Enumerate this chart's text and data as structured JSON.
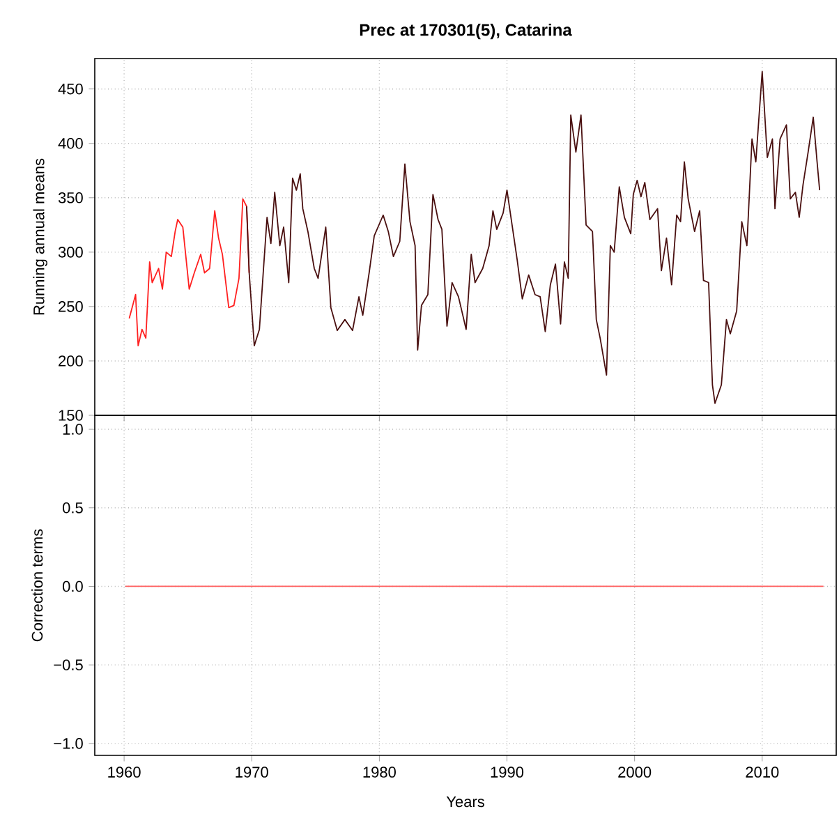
{
  "chart_data": [
    {
      "type": "line",
      "title": "Prec at 170301(5), Catarina",
      "ylabel": "Running annual means",
      "xlim": [
        1957.7,
        2015.8
      ],
      "ylim": [
        150,
        478
      ],
      "xticks": [
        1960,
        1970,
        1980,
        1990,
        2000,
        2010
      ],
      "yticks": [
        150,
        200,
        250,
        300,
        350,
        400,
        450
      ],
      "grid": true,
      "tick_labels": "y",
      "marker": "none",
      "line_style": "solid",
      "series": [
        {
          "color": "#ff2020",
          "x": [
            1960.4,
            1960.9,
            1961.1,
            1961.4,
            1961.7,
            1962.0,
            1962.2,
            1962.7,
            1963.0,
            1963.3,
            1963.7,
            1964.0,
            1964.2,
            1964.6,
            1965.1,
            1965.5,
            1966.0,
            1966.3,
            1966.7,
            1967.1,
            1967.4,
            1967.7,
            1968.2,
            1968.6,
            1969.0,
            1969.3,
            1969.6,
            1969.8
          ],
          "values": [
            239,
            261,
            214,
            229,
            221,
            291,
            272,
            285,
            266,
            300,
            296,
            319,
            330,
            323,
            266,
            281,
            298,
            281,
            285,
            338,
            313,
            298,
            249,
            251,
            276,
            349,
            342,
            281
          ]
        },
        {
          "color": "#4a1010",
          "x": [
            1969.6,
            1969.8,
            1970.2,
            1970.6,
            1970.9,
            1971.2,
            1971.5,
            1971.8,
            1972.2,
            1972.5,
            1972.9,
            1973.2,
            1973.5,
            1973.8,
            1974.0,
            1974.4,
            1974.9,
            1975.2,
            1975.8,
            1976.2,
            1976.7,
            1977.3,
            1977.9,
            1978.4,
            1978.7,
            1979.2,
            1979.6,
            1980.3,
            1980.7,
            1981.1,
            1981.6,
            1982.0,
            1982.4,
            1982.8,
            1983.0,
            1983.3,
            1983.8,
            1984.2,
            1984.6,
            1984.9,
            1985.3,
            1985.7,
            1986.2,
            1986.8,
            1987.2,
            1987.5,
            1988.1,
            1988.6,
            1988.9,
            1989.2,
            1989.7,
            1990.0,
            1990.4,
            1990.8,
            1991.2,
            1991.7,
            1992.2,
            1992.6,
            1993.0,
            1993.4,
            1993.8,
            1994.2,
            1994.5,
            1994.8,
            1995.0,
            1995.4,
            1995.8,
            1996.2,
            1996.7,
            1997.0,
            1997.3,
            1997.8,
            1998.1,
            1998.4,
            1998.8,
            1999.2,
            1999.7,
            1999.9,
            2000.2,
            2000.5,
            2000.8,
            2001.2,
            2001.8,
            2002.1,
            2002.5,
            2002.9,
            2003.3,
            2003.6,
            2003.9,
            2004.2,
            2004.7,
            2005.1,
            2005.4,
            2005.8,
            2006.1,
            2006.3,
            2006.8,
            2007.2,
            2007.5,
            2008.0,
            2008.4,
            2008.8,
            2009.2,
            2009.5,
            2010.0,
            2010.4,
            2010.8,
            2011.0,
            2011.4,
            2011.9,
            2012.2,
            2012.6,
            2012.9,
            2013.2,
            2013.6,
            2014.0,
            2014.3,
            2014.5
          ],
          "values": [
            342,
            281,
            214,
            229,
            281,
            332,
            308,
            355,
            306,
            323,
            272,
            368,
            357,
            372,
            340,
            319,
            285,
            276,
            323,
            249,
            228,
            238,
            228,
            259,
            242,
            281,
            315,
            334,
            319,
            296,
            310,
            381,
            328,
            306,
            210,
            251,
            261,
            353,
            330,
            321,
            232,
            272,
            259,
            229,
            298,
            272,
            285,
            306,
            338,
            321,
            336,
            357,
            325,
            293,
            257,
            279,
            261,
            259,
            227,
            270,
            289,
            234,
            291,
            276,
            426,
            392,
            426,
            325,
            319,
            238,
            221,
            187,
            306,
            300,
            360,
            332,
            317,
            353,
            366,
            351,
            364,
            330,
            340,
            283,
            313,
            270,
            334,
            328,
            383,
            349,
            319,
            338,
            274,
            272,
            178,
            161,
            178,
            238,
            225,
            246,
            328,
            306,
            404,
            383,
            466,
            387,
            404,
            340,
            404,
            417,
            349,
            355,
            332,
            362,
            392,
            424,
            383,
            357
          ]
        }
      ]
    },
    {
      "type": "line",
      "xlabel": "Years",
      "ylabel": "Correction terms",
      "xlim": [
        1957.7,
        2015.8
      ],
      "ylim": [
        -1.076,
        1.089
      ],
      "xticks": [
        1960,
        1970,
        1980,
        1990,
        2000,
        2010
      ],
      "yticks": [
        {
          "value": -1,
          "label": "−1.0"
        },
        {
          "value": -0.5,
          "label": "−0.5"
        },
        {
          "value": 0,
          "label": "0.0"
        },
        {
          "value": 0.5,
          "label": "0.5"
        },
        {
          "value": 1,
          "label": "1.0"
        }
      ],
      "grid": true,
      "marker": "none",
      "line_style": "solid",
      "series": [
        {
          "color": "#ff6060",
          "x": [
            1960.1,
            2014.8
          ],
          "values": [
            0,
            0
          ]
        }
      ]
    }
  ]
}
